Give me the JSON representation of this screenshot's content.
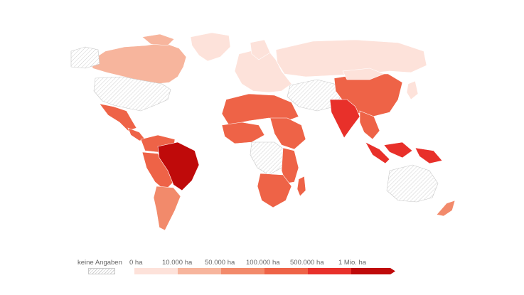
{
  "map": {
    "colors": {
      "no_data_stroke": "#c8c8c8",
      "class_0": "#fde2da",
      "class_1": "#f7b59d",
      "class_2": "#f28a6b",
      "class_3": "#ee6347",
      "class_4": "#e8302a",
      "class_5": "#bf0a0a"
    },
    "regions": [
      {
        "name": "Canada",
        "class": 1
      },
      {
        "name": "Greenland",
        "class": 0
      },
      {
        "name": "United States",
        "class": -1
      },
      {
        "name": "Mexico",
        "class": 3
      },
      {
        "name": "Brazil",
        "class": 5
      },
      {
        "name": "Colombia",
        "class": 3
      },
      {
        "name": "Peru",
        "class": 3
      },
      {
        "name": "Argentina",
        "class": 2
      },
      {
        "name": "Russia",
        "class": 0
      },
      {
        "name": "China",
        "class": 3
      },
      {
        "name": "India",
        "class": 4
      },
      {
        "name": "Indonesia",
        "class": 4
      },
      {
        "name": "Australia",
        "class": -1
      },
      {
        "name": "Sudan",
        "class": 3
      },
      {
        "name": "Tanzania",
        "class": 3
      },
      {
        "name": "South Africa",
        "class": 3
      }
    ]
  },
  "legend": {
    "no_data_label": "keine Angaben",
    "labels": [
      "0 ha",
      "10.000 ha",
      "50.000 ha",
      "100.000 ha",
      "500.000 ha",
      "1 Mio. ha"
    ]
  }
}
